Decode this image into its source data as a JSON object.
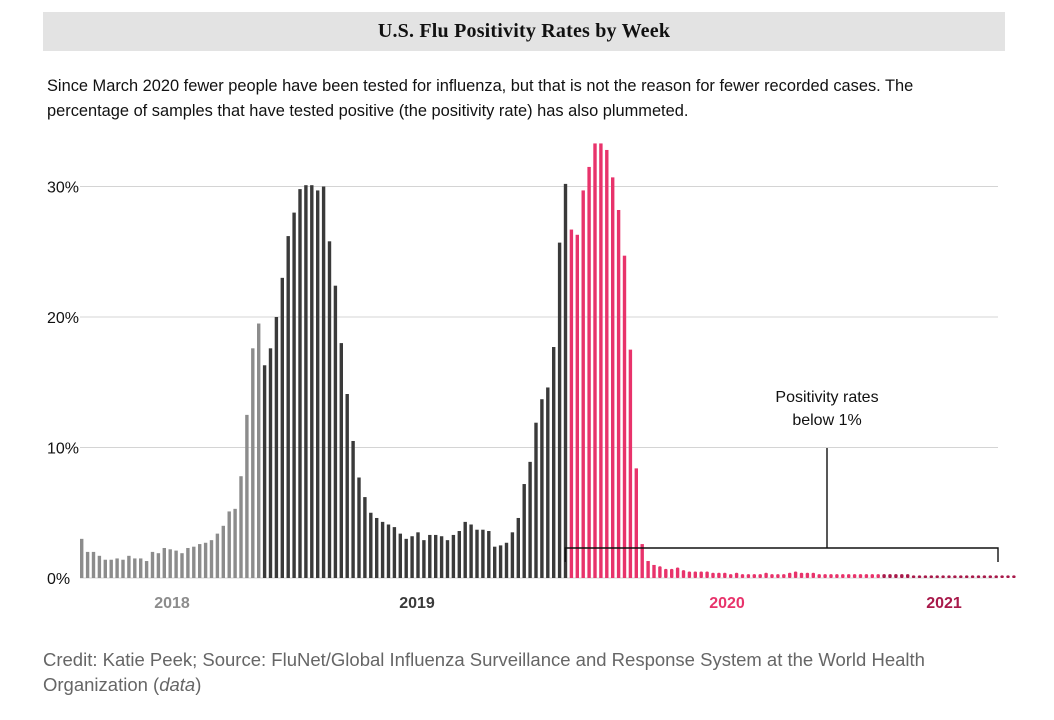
{
  "header": {
    "title": "U.S. Flu Positivity Rates by Week"
  },
  "description": "Since March 2020 fewer people have been tested for influenza, but that is not the reason for fewer recorded cases. The percentage of samples that have tested positive (the positivity rate) has also plummeted.",
  "credit": {
    "text": "Credit: Katie Peek; Source: FluNet/Global Influenza Surveillance and Response System at the World Health Organization (",
    "link": "data",
    "close": ")"
  },
  "colors": {
    "2018": "#8c8c8c",
    "2019": "#3a3a3a",
    "2020": "#e8336b",
    "2021": "#a8194a",
    "grid": "#d4d4d4",
    "text": "#111111",
    "muted": "#888888"
  },
  "chart_data": {
    "type": "bar",
    "title": "U.S. Flu Positivity Rates by Week",
    "ylim": [
      0,
      34
    ],
    "yticks": [
      0,
      10,
      20,
      30
    ],
    "ytick_labels": [
      "0%",
      "10%",
      "20%",
      "30%"
    ],
    "grid": true,
    "year_labels": [
      {
        "year": "2018",
        "label": "2018",
        "color_key": "2018"
      },
      {
        "year": "2019",
        "label": "2019",
        "color_key": "2019"
      },
      {
        "year": "2020",
        "label": "2020",
        "color_key": "2020"
      },
      {
        "year": "2021",
        "label": "2021",
        "color_key": "2021"
      }
    ],
    "series": [
      {
        "name": "2018",
        "color_key": "2018",
        "values": [
          3.0,
          2.0,
          2.0,
          1.7,
          1.4,
          1.4,
          1.5,
          1.4,
          1.7,
          1.5,
          1.5,
          1.3,
          2.0,
          1.9,
          2.3,
          2.2,
          2.1,
          1.9,
          2.3,
          2.4,
          2.6,
          2.7,
          2.9,
          3.4,
          4.0,
          5.1,
          5.3,
          7.8,
          12.5,
          17.6,
          19.5
        ]
      },
      {
        "name": "2019",
        "color_key": "2019",
        "values": [
          16.3,
          17.6,
          20.0,
          23.0,
          26.2,
          28.0,
          29.8,
          30.1,
          30.1,
          29.7,
          30.0,
          25.8,
          22.4,
          18.0,
          14.1,
          10.5,
          7.7,
          6.2,
          5.0,
          4.6,
          4.3,
          4.1,
          3.9,
          3.4,
          3.0,
          3.2,
          3.5,
          2.9,
          3.3,
          3.3,
          3.2,
          2.9,
          3.3,
          3.6,
          4.3,
          4.1,
          3.7,
          3.7,
          3.6,
          2.4,
          2.5,
          2.7,
          3.5,
          4.6,
          7.2,
          8.9,
          11.9,
          13.7,
          14.6,
          17.7,
          25.7,
          30.2
        ]
      },
      {
        "name": "2020",
        "color_key": "2020",
        "values": [
          26.7,
          26.3,
          29.7,
          31.5,
          33.3,
          33.3,
          32.8,
          30.7,
          28.2,
          24.7,
          17.5,
          8.4,
          2.6,
          1.3,
          1.0,
          0.9,
          0.7,
          0.7,
          0.8,
          0.6,
          0.5,
          0.5,
          0.5,
          0.5,
          0.4,
          0.4,
          0.4,
          0.3,
          0.4,
          0.3,
          0.3,
          0.3,
          0.3,
          0.4,
          0.3,
          0.3,
          0.3,
          0.4,
          0.5,
          0.4,
          0.4,
          0.4,
          0.3,
          0.3,
          0.3,
          0.3,
          0.3,
          0.3,
          0.3,
          0.3,
          0.3,
          0.3,
          0.3
        ]
      },
      {
        "name": "2021",
        "color_key": "2021",
        "values": [
          0.3,
          0.3,
          0.3,
          0.3,
          0.3,
          0.2,
          0.2,
          0.2,
          0.2,
          0.2,
          0.2,
          0.2,
          0.2,
          0.2,
          0.2,
          0.2,
          0.2,
          0.2,
          0.2,
          0.2,
          0.2,
          0.2,
          0.2
        ]
      }
    ],
    "annotation": {
      "text_line1": "Positivity rates",
      "text_line2": "below 1%",
      "from_week": 82,
      "to_week": 158
    }
  }
}
